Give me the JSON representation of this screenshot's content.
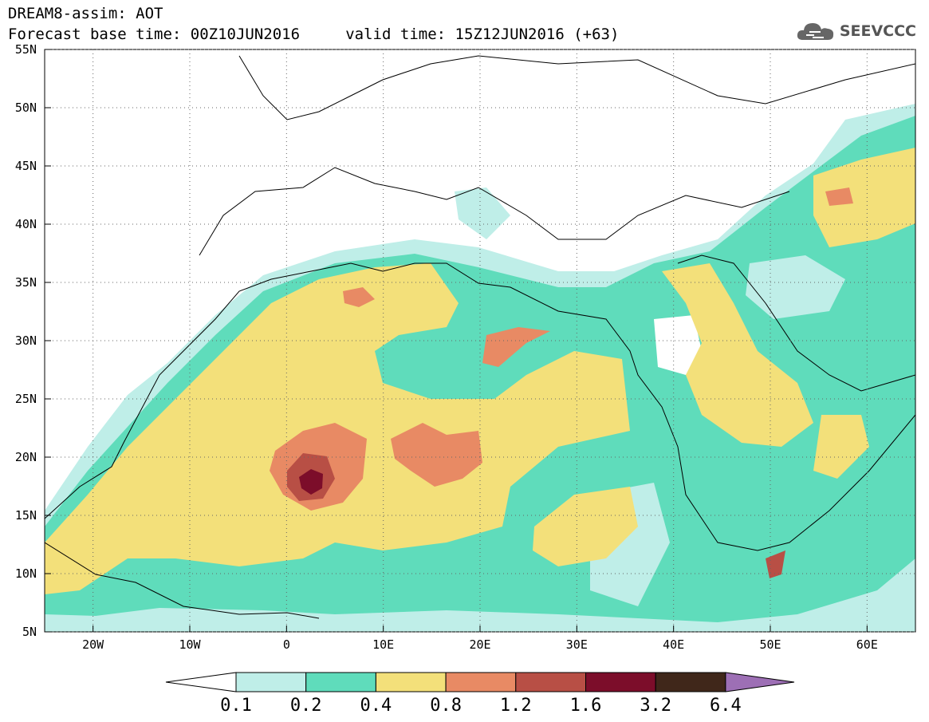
{
  "header": {
    "line1": "DREAM8-assim: AOT",
    "line2": "Forecast base time: 00Z10JUN2016     valid time: 15Z12JUN2016 (+63)"
  },
  "logo": {
    "text": "SEEVCCC",
    "icon": "cloud-icon"
  },
  "map": {
    "lat_labels": [
      "55N",
      "50N",
      "45N",
      "40N",
      "35N",
      "30N",
      "25N",
      "20N",
      "15N",
      "10N",
      "5N"
    ],
    "lon_labels": [
      "20W",
      "10W",
      "0",
      "10E",
      "20E",
      "30E",
      "40E",
      "50E",
      "60E"
    ],
    "lat_range": [
      5,
      55
    ],
    "lon_range": [
      -25,
      65
    ],
    "grid": "dotted"
  },
  "colorbar": {
    "levels": [
      "0.1",
      "0.2",
      "0.4",
      "0.8",
      "1.2",
      "1.6",
      "3.2",
      "6.4"
    ],
    "colors": [
      "#ffffff",
      "#bfeee8",
      "#5fdcbb",
      "#f3e07a",
      "#e88a64",
      "#b84f45",
      "#7c0d2a",
      "#40271a",
      "#9d6fb5"
    ]
  }
}
